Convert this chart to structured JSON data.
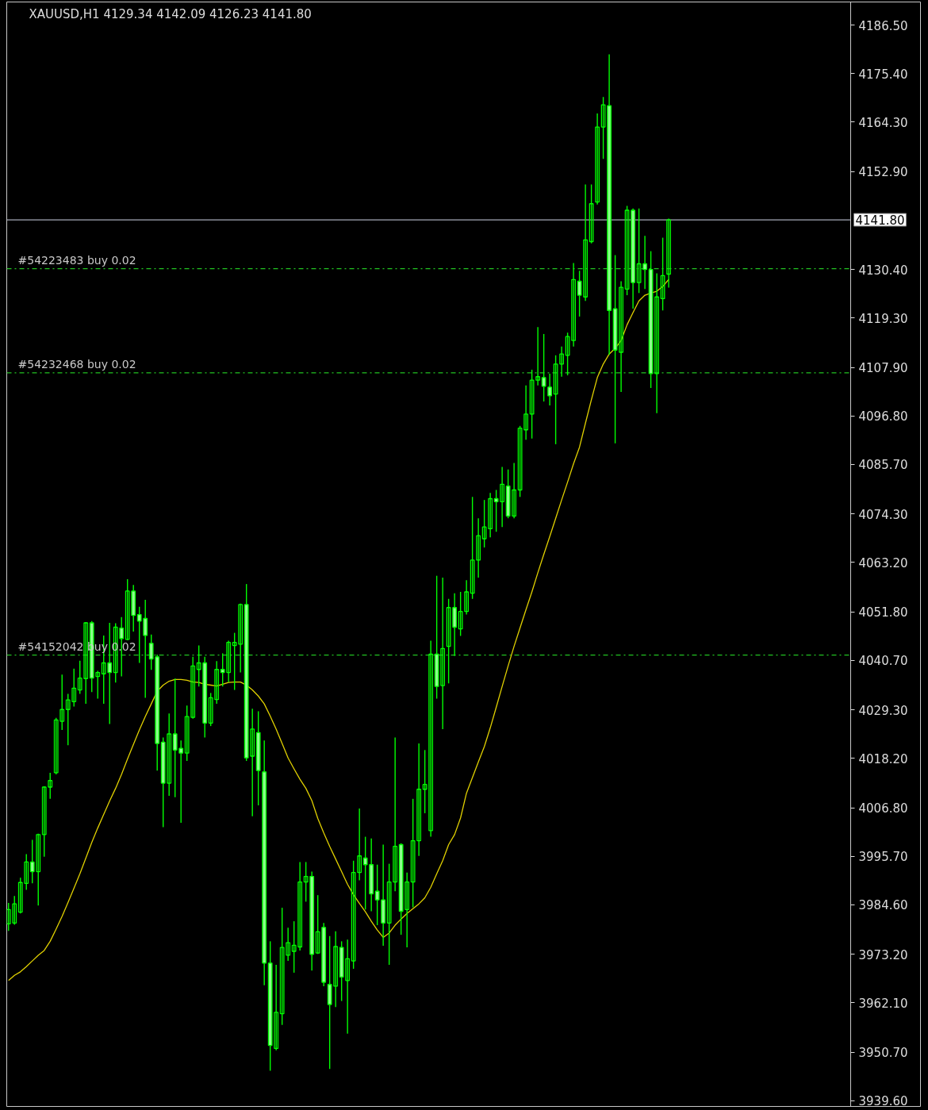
{
  "chart_data": {
    "type": "candlestick",
    "title": "XAUUSD,H1 4129.34 4142.09 4126.23 4141.80",
    "categories": [
      null,
      null,
      null,
      null,
      null,
      null,
      null,
      null,
      null,
      null,
      null,
      null,
      null,
      null,
      null,
      null,
      null,
      null,
      null,
      null,
      null,
      null,
      null,
      null,
      null,
      null,
      null,
      null,
      null,
      null,
      null,
      null,
      null,
      null,
      null,
      null,
      null,
      null,
      null,
      null,
      null,
      null,
      null,
      null,
      null,
      null,
      null,
      null,
      null,
      null,
      null,
      null,
      null,
      null,
      null,
      null,
      null,
      null,
      null,
      null,
      null,
      null,
      null,
      null,
      null,
      null,
      null,
      null,
      null,
      null,
      null,
      null,
      null,
      null,
      null,
      null,
      null,
      null,
      null,
      null,
      null,
      null,
      null,
      null,
      null,
      null,
      null,
      null,
      null,
      null,
      null,
      null,
      null,
      null,
      null,
      null,
      null,
      null,
      null,
      null,
      null,
      null,
      null,
      null,
      null,
      null,
      null,
      null,
      null,
      null,
      null,
      null
    ],
    "ohlc": [
      [
        3980.2,
        3985.0,
        3978.6,
        3983.5
      ],
      [
        3980.4,
        3986.6,
        3980.0,
        3984.8
      ],
      [
        3982.9,
        3990.8,
        3982.6,
        3989.7
      ],
      [
        3989.5,
        3996.2,
        3988.0,
        3994.4
      ],
      [
        3994.4,
        3999.5,
        3989.5,
        3992.2
      ],
      [
        3992.2,
        4000.9,
        3984.4,
        4000.7
      ],
      [
        4000.7,
        4011.8,
        3995.6,
        4011.6
      ],
      [
        4011.6,
        4014.9,
        4008.9,
        4013.1
      ],
      [
        4014.9,
        4027.5,
        4014.5,
        4027.0
      ],
      [
        4026.7,
        4037.4,
        4024.7,
        4029.4
      ],
      [
        4029.4,
        4033.0,
        4021.2,
        4031.6
      ],
      [
        4031.2,
        4038.8,
        4030.1,
        4034.3
      ],
      [
        4033.9,
        4040.6,
        4033.0,
        4036.6
      ],
      [
        4036.5,
        4049.5,
        4030.7,
        4049.3
      ],
      [
        4049.3,
        4049.7,
        4033.4,
        4036.6
      ],
      [
        4037.0,
        4038.3,
        4031.9,
        4037.9
      ],
      [
        4037.6,
        4046.4,
        4030.7,
        4040.1
      ],
      [
        4040.1,
        4049.3,
        4026.1,
        4037.9
      ],
      [
        4037.9,
        4049.2,
        4035.6,
        4048.3
      ],
      [
        4048.1,
        4050.6,
        4037.0,
        4045.7
      ],
      [
        4045.5,
        4059.3,
        4045.3,
        4056.6
      ],
      [
        4056.6,
        4058.0,
        4047.3,
        4051.0
      ],
      [
        4051.2,
        4053.0,
        4040.1,
        4049.7
      ],
      [
        4050.3,
        4054.6,
        4032.1,
        4046.4
      ],
      [
        4044.6,
        4046.6,
        4038.5,
        4041.0
      ],
      [
        4041.5,
        4042.0,
        4015.4,
        4021.6
      ],
      [
        4021.9,
        4023.0,
        4002.4,
        4012.5
      ],
      [
        4012.5,
        4028.5,
        4009.6,
        4023.8
      ],
      [
        4023.8,
        4036.5,
        4009.3,
        4020.1
      ],
      [
        4020.5,
        4022.3,
        4003.4,
        4019.4
      ],
      [
        4019.4,
        4030.3,
        4017.6,
        4027.8
      ],
      [
        4027.6,
        4041.5,
        4027.3,
        4039.4
      ],
      [
        4038.6,
        4044.1,
        4034.7,
        4040.1
      ],
      [
        4040.1,
        4041.5,
        4023.0,
        4026.3
      ],
      [
        4026.3,
        4033.2,
        4025.6,
        4032.1
      ],
      [
        4031.7,
        4040.5,
        4030.7,
        4038.6
      ],
      [
        4038.6,
        4042.3,
        4034.7,
        4037.9
      ],
      [
        4037.9,
        4045.2,
        4035.7,
        4044.8
      ],
      [
        4044.1,
        4047.0,
        4033.9,
        4044.8
      ],
      [
        4044.4,
        4053.7,
        4037.9,
        4053.5
      ],
      [
        4053.5,
        4058.2,
        4017.6,
        4018.3
      ],
      [
        4018.7,
        4029.6,
        4004.9,
        4024.9
      ],
      [
        4024.1,
        4029.0,
        4007.4,
        4015.4
      ],
      [
        4015.1,
        4022.3,
        3966.1,
        3971.2
      ],
      [
        3971.2,
        3976.2,
        3946.5,
        3952.3
      ],
      [
        3951.6,
        3970.8,
        3951.2,
        3959.9
      ],
      [
        3959.6,
        3983.9,
        3957.0,
        3974.8
      ],
      [
        3973.0,
        3979.3,
        3971.7,
        3975.9
      ],
      [
        3973.9,
        3980.8,
        3969.0,
        3975.3
      ],
      [
        3974.9,
        3994.4,
        3974.1,
        3989.8
      ],
      [
        3989.8,
        3994.4,
        3985.3,
        3991.1
      ],
      [
        3991.1,
        3992.2,
        3969.5,
        3973.2
      ],
      [
        3973.5,
        3986.8,
        3973.3,
        3978.4
      ],
      [
        3979.4,
        3980.4,
        3965.9,
        3966.8
      ],
      [
        3966.3,
        3977.4,
        3946.9,
        3961.7
      ],
      [
        3965.9,
        3978.5,
        3961.1,
        3975.0
      ],
      [
        3974.8,
        3976.2,
        3962.5,
        3968.0
      ],
      [
        3967.2,
        3976.6,
        3955.0,
        3972.2
      ],
      [
        3971.7,
        3994.7,
        3969.9,
        3992.0
      ],
      [
        3992.0,
        4006.7,
        3990.2,
        3995.8
      ],
      [
        3995.3,
        4000.2,
        3983.5,
        3993.8
      ],
      [
        3993.8,
        3999.8,
        3983.1,
        3987.1
      ],
      [
        3987.7,
        3993.8,
        3979.9,
        3985.7
      ],
      [
        3985.7,
        3998.4,
        3975.2,
        3980.4
      ],
      [
        3980.4,
        3994.0,
        3970.8,
        3989.8
      ],
      [
        3989.8,
        4023.0,
        3987.7,
        3998.0
      ],
      [
        3998.4,
        3998.7,
        3977.7,
        3983.1
      ],
      [
        3983.5,
        3992.0,
        3974.8,
        3989.8
      ],
      [
        3989.8,
        4008.9,
        3984.0,
        3999.3
      ],
      [
        3999.3,
        4021.6,
        3995.8,
        4011.1
      ],
      [
        4011.1,
        4020.1,
        4005.6,
        4012.2
      ],
      [
        4001.6,
        4045.2,
        4000.2,
        4042.1
      ],
      [
        4042.1,
        4060.1,
        4031.9,
        4034.7
      ],
      [
        4034.9,
        4059.7,
        4024.9,
        4043.4
      ],
      [
        4043.9,
        4054.8,
        4035.4,
        4052.8
      ],
      [
        4052.8,
        4056.1,
        4041.7,
        4048.3
      ],
      [
        4047.9,
        4056.4,
        4046.3,
        4051.9
      ],
      [
        4051.9,
        4059.1,
        4051.2,
        4056.4
      ],
      [
        4056.1,
        4078.2,
        4054.8,
        4063.7
      ],
      [
        4063.7,
        4073.3,
        4059.7,
        4069.3
      ],
      [
        4068.6,
        4077.5,
        4066.6,
        4071.3
      ],
      [
        4070.9,
        4079.1,
        4068.9,
        4077.8
      ],
      [
        4077.8,
        4079.8,
        4070.2,
        4077.1
      ],
      [
        4077.1,
        4085.1,
        4071.3,
        4081.1
      ],
      [
        4080.7,
        4084.5,
        4073.3,
        4073.8
      ],
      [
        4073.8,
        4086.0,
        4073.3,
        4079.8
      ],
      [
        4079.8,
        4094.5,
        4078.2,
        4094.0
      ],
      [
        4093.6,
        4103.8,
        4091.3,
        4097.2
      ],
      [
        4097.2,
        4107.4,
        4091.6,
        4105.0
      ],
      [
        4105.0,
        4117.2,
        4103.8,
        4105.8
      ],
      [
        4105.6,
        4115.6,
        4100.1,
        4103.6
      ],
      [
        4103.4,
        4106.5,
        4099.2,
        4101.4
      ],
      [
        4101.8,
        4110.7,
        4090.3,
        4108.7
      ],
      [
        4108.7,
        4112.7,
        4105.8,
        4111.0
      ],
      [
        4110.7,
        4115.9,
        4106.1,
        4115.0
      ],
      [
        4114.1,
        4131.9,
        4112.7,
        4128.1
      ],
      [
        4127.7,
        4130.1,
        4119.6,
        4124.5
      ],
      [
        4124.1,
        4149.9,
        4123.2,
        4137.2
      ],
      [
        4136.8,
        4149.9,
        4136.4,
        4145.5
      ],
      [
        4145.9,
        4166.2,
        4145.3,
        4163.1
      ],
      [
        4163.1,
        4170.0,
        4155.8,
        4168.2
      ],
      [
        4168.0,
        4179.8,
        4110.8,
        4121.0
      ],
      [
        4121.4,
        4133.7,
        4090.5,
        4111.9
      ],
      [
        4111.4,
        4127.7,
        4102.3,
        4126.3
      ],
      [
        4125.9,
        4145.0,
        4124.5,
        4144.0
      ],
      [
        4144.0,
        4144.4,
        4121.4,
        4127.4
      ],
      [
        4127.4,
        4144.4,
        4125.0,
        4131.7
      ],
      [
        4131.7,
        4138.1,
        4125.9,
        4130.4
      ],
      [
        4130.4,
        4134.6,
        4103.2,
        4106.5
      ],
      [
        4106.5,
        4129.5,
        4097.4,
        4124.1
      ],
      [
        4123.7,
        4137.7,
        4121.0,
        4129.0
      ],
      [
        4129.34,
        4142.09,
        4126.23,
        4141.8
      ]
    ],
    "color": "#00ff00",
    "series": [
      {
        "type": "line",
        "color": "#e0d000",
        "values": [
          3967.2,
          3968.4,
          3969.2,
          3970.4,
          3971.7,
          3973.0,
          3974.1,
          3976.2,
          3979.0,
          3981.9,
          3985.1,
          3988.4,
          3991.7,
          3995.3,
          3998.9,
          4002.2,
          4005.3,
          4008.4,
          4011.3,
          4014.5,
          4018.0,
          4021.4,
          4024.7,
          4027.8,
          4030.7,
          4033.6,
          4035.0,
          4035.9,
          4036.3,
          4036.3,
          4036.1,
          4035.7,
          4035.6,
          4035.2,
          4035.0,
          4034.8,
          4035.2,
          4035.6,
          4035.7,
          4035.7,
          4035.0,
          4033.9,
          4032.5,
          4030.7,
          4027.9,
          4024.9,
          4021.6,
          4018.3,
          4015.8,
          4013.4,
          4011.3,
          4008.5,
          4004.4,
          4001.1,
          3998.0,
          3995.1,
          3992.2,
          3989.3,
          3986.9,
          3984.9,
          3983.0,
          3980.8,
          3978.8,
          3977.1,
          3978.1,
          3979.9,
          3981.3,
          3982.6,
          3983.7,
          3984.8,
          3986.2,
          3988.6,
          3991.7,
          3994.7,
          3998.4,
          4000.7,
          4004.5,
          4010.2,
          4013.8,
          4017.4,
          4020.9,
          4025.2,
          4029.9,
          4034.7,
          4039.4,
          4043.9,
          4048.1,
          4052.3,
          4056.4,
          4060.8,
          4065.0,
          4069.1,
          4073.3,
          4077.5,
          4081.6,
          4085.8,
          4089.6,
          4095.1,
          4100.5,
          4105.6,
          4108.7,
          4111.0,
          4112.3,
          4114.1,
          4117.7,
          4120.5,
          4123.2,
          4124.5,
          4125.0,
          4125.4,
          4126.5,
          4128.1
        ]
      }
    ],
    "ylim": [
      3938.3,
      4191.8
    ],
    "yticks": [
      {
        "value": 4186.5,
        "label": "4186.50"
      },
      {
        "value": 4175.4,
        "label": "4175.40"
      },
      {
        "value": 4164.3,
        "label": "4164.30"
      },
      {
        "value": 4152.9,
        "label": "4152.90"
      },
      {
        "value": 4130.4,
        "label": "4130.40"
      },
      {
        "value": 4119.3,
        "label": "4119.30"
      },
      {
        "value": 4107.9,
        "label": "4107.90"
      },
      {
        "value": 4096.8,
        "label": "4096.80"
      },
      {
        "value": 4085.7,
        "label": "4085.70"
      },
      {
        "value": 4074.3,
        "label": "4074.30"
      },
      {
        "value": 4063.2,
        "label": "4063.20"
      },
      {
        "value": 4051.8,
        "label": "4051.80"
      },
      {
        "value": 4040.7,
        "label": "4040.70"
      },
      {
        "value": 4029.3,
        "label": "4029.30"
      },
      {
        "value": 4018.2,
        "label": "4018.20"
      },
      {
        "value": 4006.8,
        "label": "4006.80"
      },
      {
        "value": 3995.7,
        "label": "3995.70"
      },
      {
        "value": 3984.6,
        "label": "3984.60"
      },
      {
        "value": 3973.2,
        "label": "3973.20"
      },
      {
        "value": 3962.1,
        "label": "3962.10"
      },
      {
        "value": 3950.7,
        "label": "3950.70"
      },
      {
        "value": 3939.6,
        "label": "3939.60"
      }
    ],
    "ref_lines": [
      {
        "axis": "y",
        "value": 4141.8,
        "label": "4141.80",
        "color": "#a6aab8",
        "line_style": "solid"
      },
      {
        "axis": "y",
        "value": 4130.6,
        "label": "#54223483 buy 0.02",
        "color": "#22c322",
        "line_style": "dashdot"
      },
      {
        "axis": "y",
        "value": 4106.7,
        "label": "#54232468 buy 0.02",
        "color": "#22c322",
        "line_style": "dashdot"
      },
      {
        "axis": "y",
        "value": 4041.9,
        "label": "#54152042 buy 0.02",
        "color": "#22c322",
        "line_style": "dashdot"
      }
    ],
    "tick_labels": "y"
  }
}
